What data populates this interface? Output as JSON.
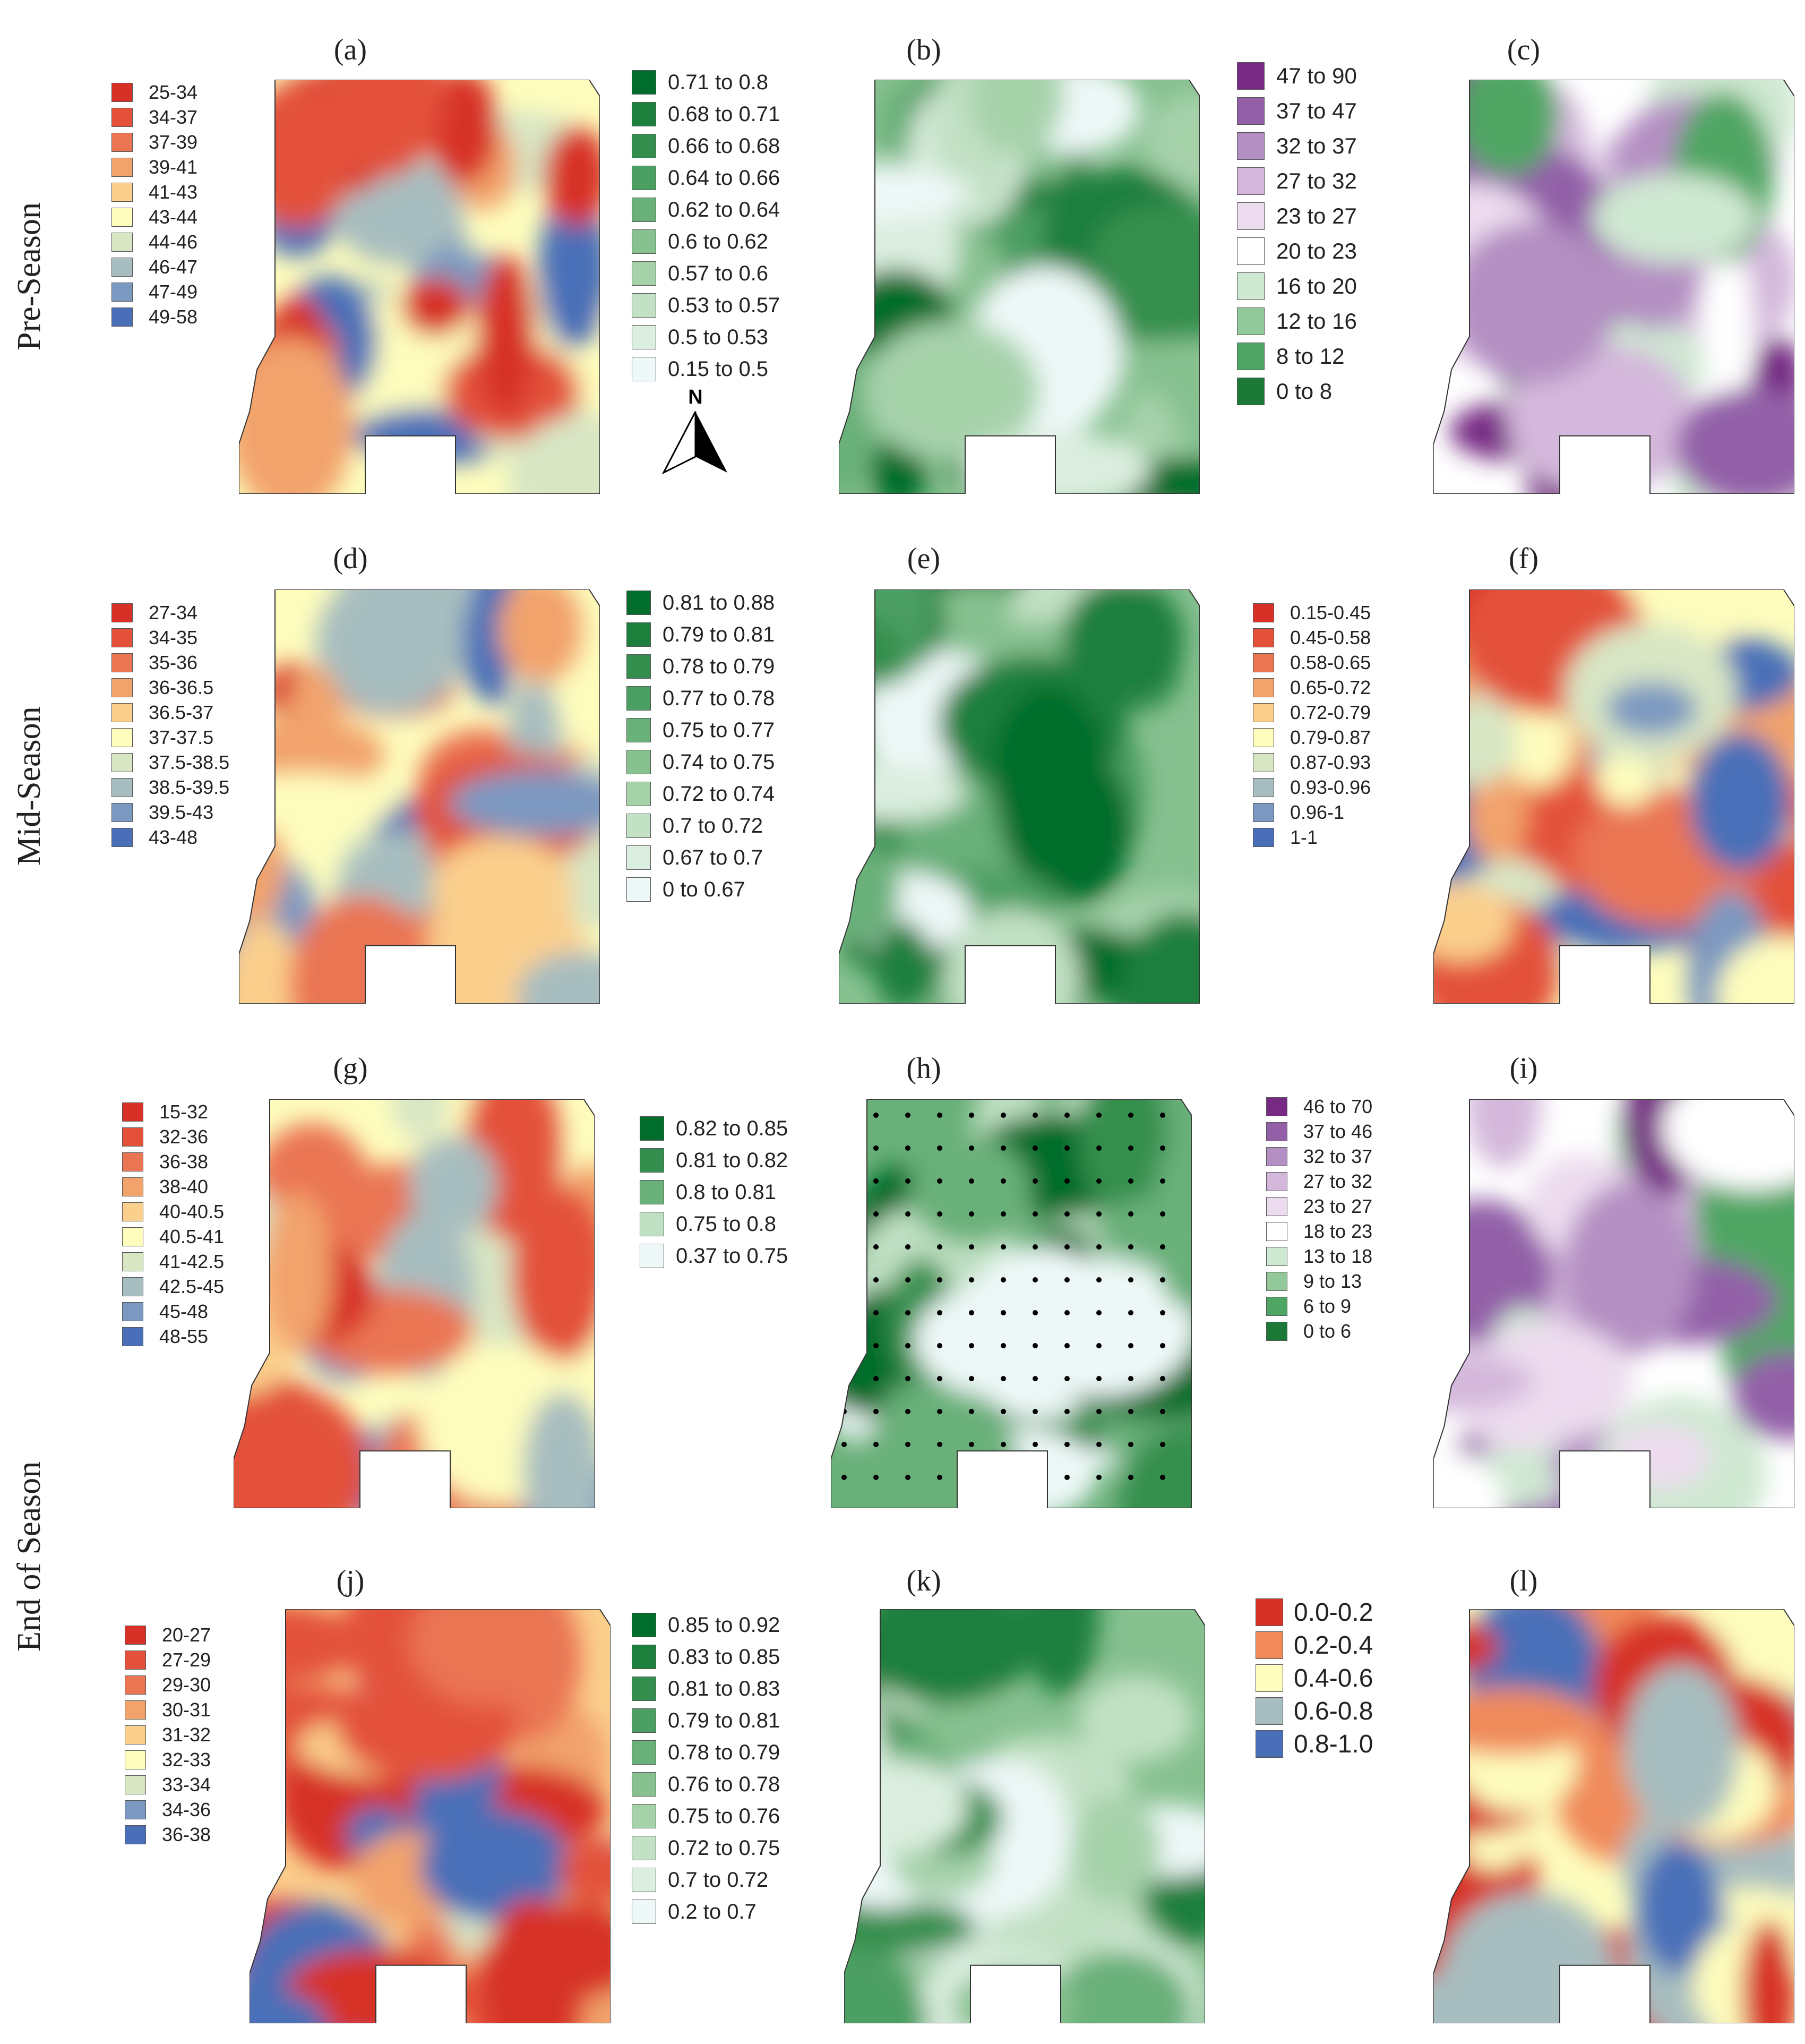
{
  "rows": [
    {
      "label": "Pre-Season"
    },
    {
      "label": "Mid-Season"
    },
    {
      "label": "End of Season"
    }
  ],
  "panels": [
    {
      "id": "a",
      "label": "(a)",
      "palette": "rdylbu",
      "legend": [
        "25-34",
        "34-37",
        "37-39",
        "39-41",
        "41-43",
        "43-44",
        "44-46",
        "46-47",
        "47-49",
        "49-58"
      ],
      "colors": [
        "#d73027",
        "#e3513a",
        "#ea7553",
        "#f2a36c",
        "#fbcf8c",
        "#fefdbd",
        "#d8e6c4",
        "#a7bdbf",
        "#7b98c0",
        "#4a6fb8"
      ]
    },
    {
      "id": "b",
      "label": "(b)",
      "palette": "green",
      "legend": [
        "0.71 to 0.8",
        "0.68 to 0.71",
        "0.66 to 0.68",
        "0.64 to 0.66",
        "0.62 to 0.64",
        "0.6 to 0.62",
        "0.57 to 0.6",
        "0.53 to 0.57",
        "0.5 to 0.53",
        "0.15 to 0.5"
      ],
      "colors": [
        "#006d2c",
        "#1d7f3c",
        "#348f4e",
        "#4c9f62",
        "#69b079",
        "#87c190",
        "#a6d2aa",
        "#c3e1c5",
        "#dbeedf",
        "#eef8f8"
      ]
    },
    {
      "id": "c",
      "label": "(c)",
      "palette": "purplegreen",
      "legend": [
        "47 to 90",
        "37 to 47",
        "32 to 37",
        "27 to 32",
        "23 to 27",
        "20 to 23",
        "16 to 20",
        "12 to 16",
        "8 to 12",
        "0 to 8"
      ],
      "colors": [
        "#762a83",
        "#9360a8",
        "#b48fc3",
        "#d4b8dc",
        "#eddcef",
        "#ffffff",
        "#cfe8d2",
        "#93c99a",
        "#4fa664",
        "#1b7837"
      ]
    },
    {
      "id": "d",
      "label": "(d)",
      "palette": "rdylbu",
      "legend": [
        "27-34",
        "34-35",
        "35-36",
        "36-36.5",
        "36.5-37",
        "37-37.5",
        "37.5-38.5",
        "38.5-39.5",
        "39.5-43",
        "43-48"
      ],
      "colors": [
        "#d73027",
        "#e3513a",
        "#ea7553",
        "#f2a36c",
        "#fbcf8c",
        "#fefdbd",
        "#d8e6c4",
        "#a7bdbf",
        "#7b98c0",
        "#4a6fb8"
      ]
    },
    {
      "id": "e",
      "label": "(e)",
      "palette": "green",
      "legend": [
        "0.81 to 0.88",
        "0.79 to 0.81",
        "0.78 to 0.79",
        "0.77 to 0.78",
        "0.75 to 0.77",
        "0.74 to 0.75",
        "0.72 to 0.74",
        "0.7 to 0.72",
        "0.67 to 0.7",
        "0 to 0.67"
      ],
      "colors": [
        "#006d2c",
        "#1d7f3c",
        "#348f4e",
        "#4c9f62",
        "#69b079",
        "#87c190",
        "#a6d2aa",
        "#c3e1c5",
        "#dbeedf",
        "#eef8f8"
      ]
    },
    {
      "id": "f",
      "label": "(f)",
      "palette": "rdylbu",
      "legend": [
        "0.15-0.45",
        "0.45-0.58",
        "0.58-0.65",
        "0.65-0.72",
        "0.72-0.79",
        "0.79-0.87",
        "0.87-0.93",
        "0.93-0.96",
        "0.96-1",
        "1-1"
      ],
      "colors": [
        "#d73027",
        "#e3513a",
        "#ea7553",
        "#f2a36c",
        "#fbcf8c",
        "#fefdbd",
        "#d8e6c4",
        "#a7bdbf",
        "#7b98c0",
        "#4a6fb8"
      ]
    },
    {
      "id": "g",
      "label": "(g)",
      "palette": "rdylbu",
      "legend": [
        "15-32",
        "32-36",
        "36-38",
        "38-40",
        "40-40.5",
        "40.5-41",
        "41-42.5",
        "42.5-45",
        "45-48",
        "48-55"
      ],
      "colors": [
        "#d73027",
        "#e3513a",
        "#ea7553",
        "#f2a36c",
        "#fbcf8c",
        "#fefdbd",
        "#d8e6c4",
        "#a7bdbf",
        "#7b98c0",
        "#4a6fb8"
      ]
    },
    {
      "id": "h",
      "label": "(h)",
      "palette": "green5",
      "legend": [
        "0.82 to 0.85",
        "0.81 to 0.82",
        "0.8 to 0.81",
        "0.75 to 0.8",
        "0.37 to 0.75"
      ],
      "colors": [
        "#006d2c",
        "#348f4e",
        "#69b079",
        "#bfe0c3",
        "#eef8f8"
      ]
    },
    {
      "id": "i",
      "label": "(i)",
      "palette": "purplegreen",
      "legend": [
        "46 to 70",
        "37 to 46",
        "32 to 37",
        "27 to 32",
        "23 to 27",
        "18 to 23",
        "13 to 18",
        "9 to 13",
        "6 to 9",
        "0 to 6"
      ],
      "colors": [
        "#762a83",
        "#9360a8",
        "#b48fc3",
        "#d4b8dc",
        "#eddcef",
        "#ffffff",
        "#cfe8d2",
        "#93c99a",
        "#4fa664",
        "#1b7837"
      ]
    },
    {
      "id": "j",
      "label": "(j)",
      "palette": "rdylbu",
      "legend": [
        "20-27",
        "27-29",
        "29-30",
        "30-31",
        "31-32",
        "32-33",
        "33-34",
        "34-36",
        "36-38"
      ],
      "colors": [
        "#d73027",
        "#e3513a",
        "#ea7553",
        "#f2a36c",
        "#fbcf8c",
        "#fefdbd",
        "#d8e6c4",
        "#7b98c0",
        "#4a6fb8"
      ]
    },
    {
      "id": "k",
      "label": "(k)",
      "palette": "green",
      "legend": [
        "0.85 to 0.92",
        "0.83 to 0.85",
        "0.81 to 0.83",
        "0.79 to 0.81",
        "0.78 to 0.79",
        "0.76 to 0.78",
        "0.75 to 0.76",
        "0.72 to 0.75",
        "0.7 to 0.72",
        "0.2 to 0.7"
      ],
      "colors": [
        "#006d2c",
        "#1d7f3c",
        "#348f4e",
        "#4c9f62",
        "#69b079",
        "#87c190",
        "#a6d2aa",
        "#c3e1c5",
        "#dbeedf",
        "#eef8f8"
      ]
    },
    {
      "id": "l",
      "label": "(l)",
      "palette": "rdylbu5",
      "legend": [
        "0.0-0.2",
        "0.2-0.4",
        "0.4-0.6",
        "0.6-0.8",
        "0.8-1.0"
      ],
      "colors": [
        "#d73027",
        "#f08a5a",
        "#fefdbd",
        "#a7bdbf",
        "#4a6fb8"
      ]
    }
  ],
  "north_arrow": {
    "label": "N"
  }
}
